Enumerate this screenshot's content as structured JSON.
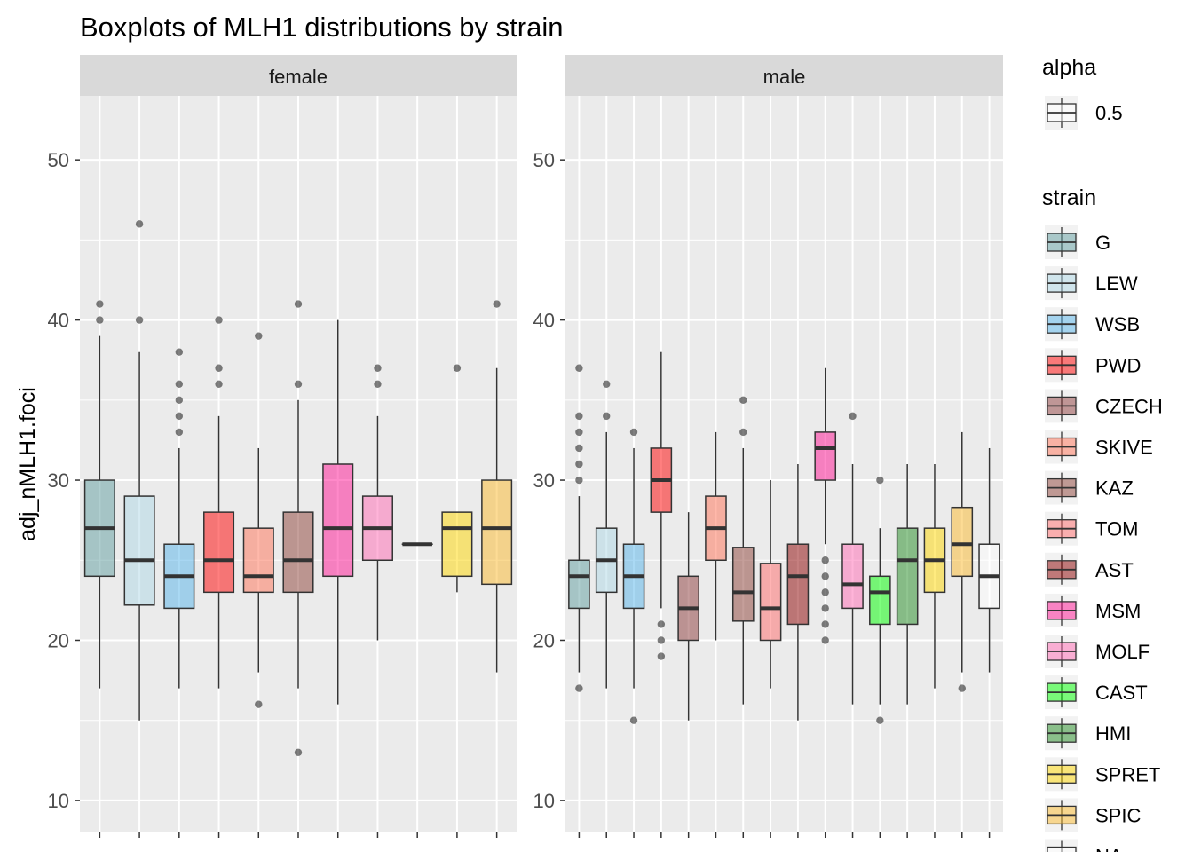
{
  "chart_data": {
    "type": "boxplot",
    "title": "Boxplots of MLH1 distributions by strain",
    "ylabel": "adj_nMLH1.foci",
    "xlabel": "",
    "ylim": [
      8,
      54
    ],
    "y_ticks": [
      10,
      20,
      30,
      40,
      50
    ],
    "grid": true,
    "legend_position": "right",
    "fill_alpha": 0.5,
    "legends": [
      {
        "title": "alpha",
        "entries": [
          {
            "label": "0.5",
            "color": "#FFFFFF"
          }
        ]
      },
      {
        "title": "strain",
        "entries": [
          {
            "label": "G",
            "color": "#5F9EA0"
          },
          {
            "label": "LEW",
            "color": "#ADD8E6"
          },
          {
            "label": "WSB",
            "color": "#56B4E9"
          },
          {
            "label": "PWD",
            "color": "#FF0000"
          },
          {
            "label": "CZECH",
            "color": "#8B3A3A"
          },
          {
            "label": "SKIVE",
            "color": "#FF7256"
          },
          {
            "label": "KAZ",
            "color": "#8B4036"
          },
          {
            "label": "TOM",
            "color": "#FF6A6A"
          },
          {
            "label": "AST",
            "color": "#8B0000"
          },
          {
            "label": "MSM",
            "color": "#FF1493"
          },
          {
            "label": "MOLF",
            "color": "#FF69B4"
          },
          {
            "label": "CAST",
            "color": "#00FF00"
          },
          {
            "label": "HMI",
            "color": "#228B22"
          },
          {
            "label": "SPRET",
            "color": "#FFD700"
          },
          {
            "label": "SPIC",
            "color": "#FBBA2B"
          },
          {
            "label": "NA",
            "color": "#FFFFFF"
          }
        ]
      }
    ],
    "panels": [
      {
        "label": "female",
        "n_slots": 11,
        "boxes": [
          {
            "slot": 0,
            "color": "#5F9EA0",
            "min": 17,
            "q1": 24,
            "median": 27,
            "q3": 30,
            "max": 39,
            "outliers": [
              40,
              41
            ]
          },
          {
            "slot": 1,
            "color": "#ADD8E6",
            "min": 15,
            "q1": 22.2,
            "median": 25,
            "q3": 29,
            "max": 38,
            "outliers": [
              40,
              46
            ]
          },
          {
            "slot": 2,
            "color": "#56B4E9",
            "min": 17,
            "q1": 22,
            "median": 24,
            "q3": 26,
            "max": 32,
            "outliers": [
              33,
              34,
              35,
              36,
              38
            ]
          },
          {
            "slot": 3,
            "color": "#FF0000",
            "min": 17,
            "q1": 23,
            "median": 25,
            "q3": 28,
            "max": 34,
            "outliers": [
              36,
              37,
              40
            ]
          },
          {
            "slot": 4,
            "color": "#FF7256",
            "min": 18,
            "q1": 23,
            "median": 24,
            "q3": 27,
            "max": 32,
            "outliers": [
              16,
              39
            ]
          },
          {
            "slot": 5,
            "color": "#8B4036",
            "min": 17,
            "q1": 23,
            "median": 25,
            "q3": 28,
            "max": 35,
            "outliers": [
              13,
              36,
              41
            ]
          },
          {
            "slot": 6,
            "color": "#FF1493",
            "min": 16,
            "q1": 24,
            "median": 27,
            "q3": 31,
            "max": 40,
            "outliers": []
          },
          {
            "slot": 7,
            "color": "#FF69B4",
            "min": 20,
            "q1": 25,
            "median": 27,
            "q3": 29,
            "max": 34,
            "outliers": [
              36,
              37
            ]
          },
          {
            "slot": 8,
            "color": "#228B22",
            "min": 26,
            "q1": 26,
            "median": 26,
            "q3": 26,
            "max": 26,
            "outliers": []
          },
          {
            "slot": 9,
            "color": "#FFD700",
            "min": 23,
            "q1": 24,
            "median": 27,
            "q3": 28,
            "max": 28,
            "outliers": [
              37
            ]
          },
          {
            "slot": 10,
            "color": "#FBBA2B",
            "min": 18,
            "q1": 23.5,
            "median": 27,
            "q3": 30,
            "max": 37,
            "outliers": [
              41
            ]
          }
        ]
      },
      {
        "label": "male",
        "n_slots": 16,
        "boxes": [
          {
            "slot": 0,
            "color": "#5F9EA0",
            "min": 18,
            "q1": 22,
            "median": 24,
            "q3": 25,
            "max": 29,
            "outliers": [
              17,
              30,
              31,
              32,
              33,
              34,
              37
            ]
          },
          {
            "slot": 1,
            "color": "#ADD8E6",
            "min": 17,
            "q1": 23,
            "median": 25,
            "q3": 27,
            "max": 33,
            "outliers": [
              34,
              36
            ]
          },
          {
            "slot": 2,
            "color": "#56B4E9",
            "min": 17,
            "q1": 22,
            "median": 24,
            "q3": 26,
            "max": 32,
            "outliers": [
              15,
              33
            ]
          },
          {
            "slot": 3,
            "color": "#FF0000",
            "min": 22,
            "q1": 28,
            "median": 30,
            "q3": 32,
            "max": 38,
            "outliers": [
              19,
              20,
              21
            ]
          },
          {
            "slot": 4,
            "color": "#8B3A3A",
            "min": 15,
            "q1": 20,
            "median": 22,
            "q3": 24,
            "max": 28,
            "outliers": []
          },
          {
            "slot": 5,
            "color": "#FF7256",
            "min": 20,
            "q1": 25,
            "median": 27,
            "q3": 29,
            "max": 33,
            "outliers": []
          },
          {
            "slot": 6,
            "color": "#8B4036",
            "min": 16,
            "q1": 21.2,
            "median": 23,
            "q3": 25.8,
            "max": 32,
            "outliers": [
              33,
              35
            ]
          },
          {
            "slot": 7,
            "color": "#FF6A6A",
            "min": 17,
            "q1": 20,
            "median": 22,
            "q3": 24.8,
            "max": 30,
            "outliers": []
          },
          {
            "slot": 8,
            "color": "#8B0000",
            "min": 15,
            "q1": 21,
            "median": 24,
            "q3": 26,
            "max": 31,
            "outliers": []
          },
          {
            "slot": 9,
            "color": "#FF1493",
            "min": 26,
            "q1": 30,
            "median": 32,
            "q3": 33,
            "max": 37,
            "outliers": [
              20,
              21,
              22,
              23,
              24,
              25
            ]
          },
          {
            "slot": 10,
            "color": "#FF69B4",
            "min": 16,
            "q1": 22,
            "median": 23.5,
            "q3": 26,
            "max": 31,
            "outliers": [
              34
            ]
          },
          {
            "slot": 11,
            "color": "#00FF00",
            "min": 16,
            "q1": 21,
            "median": 23,
            "q3": 24,
            "max": 27,
            "outliers": [
              15,
              30
            ]
          },
          {
            "slot": 12,
            "color": "#228B22",
            "min": 16,
            "q1": 21,
            "median": 25,
            "q3": 27,
            "max": 31,
            "outliers": []
          },
          {
            "slot": 13,
            "color": "#FFD700",
            "min": 17,
            "q1": 23,
            "median": 25,
            "q3": 27,
            "max": 31,
            "outliers": []
          },
          {
            "slot": 14,
            "color": "#FBBA2B",
            "min": 18,
            "q1": 24,
            "median": 26,
            "q3": 28.3,
            "max": 33,
            "outliers": [
              17
            ]
          },
          {
            "slot": 15,
            "color": "#FFFFFF",
            "min": 18,
            "q1": 22,
            "median": 24,
            "q3": 26,
            "max": 32,
            "outliers": []
          }
        ]
      }
    ]
  }
}
